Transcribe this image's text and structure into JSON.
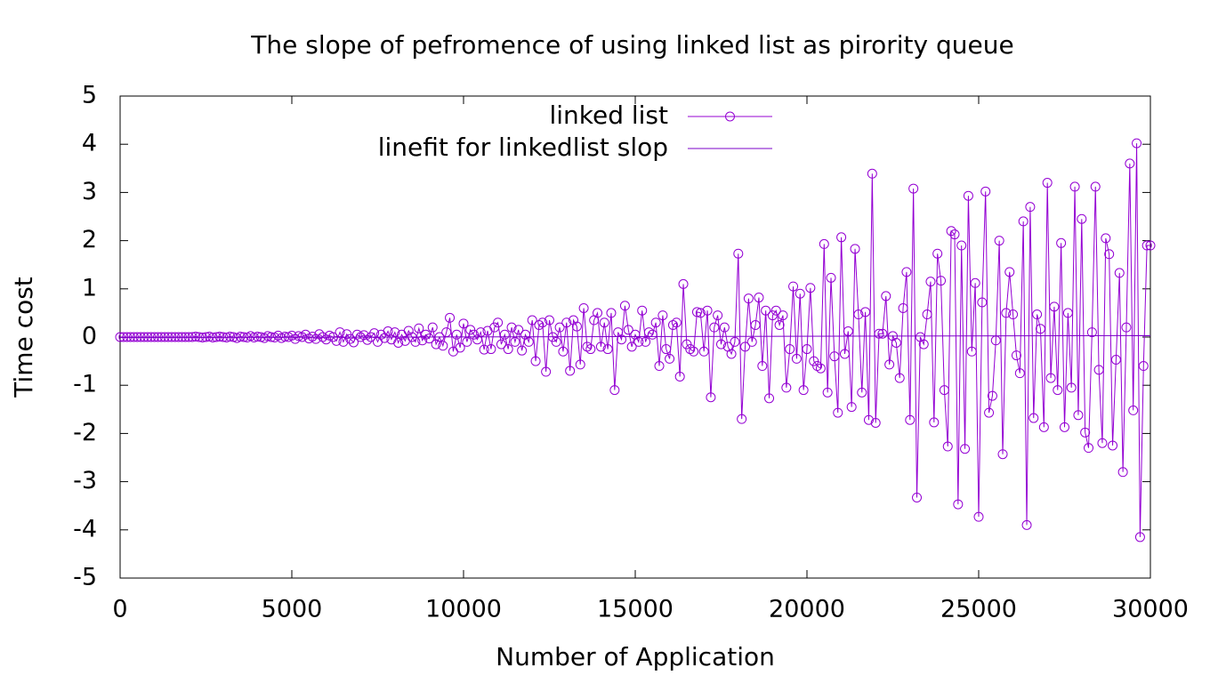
{
  "chart_data": {
    "type": "line",
    "title": "The slope of pefromence of using linked list as pirority queue",
    "xlabel": "Number of Application",
    "ylabel": "Time cost",
    "x": [
      0,
      100,
      200,
      300,
      400,
      500,
      600,
      700,
      800,
      900,
      1000,
      1100,
      1200,
      1300,
      1400,
      1500,
      1600,
      1700,
      1800,
      1900,
      2000,
      2100,
      2200,
      2300,
      2400,
      2500,
      2600,
      2700,
      2800,
      2900,
      3000,
      3100,
      3200,
      3300,
      3400,
      3500,
      3600,
      3700,
      3800,
      3900,
      4000,
      4100,
      4200,
      4300,
      4400,
      4500,
      4600,
      4700,
      4800,
      4900,
      5000,
      5100,
      5200,
      5300,
      5400,
      5500,
      5600,
      5700,
      5800,
      5900,
      6000,
      6100,
      6200,
      6300,
      6400,
      6500,
      6600,
      6700,
      6800,
      6900,
      7000,
      7100,
      7200,
      7300,
      7400,
      7500,
      7600,
      7700,
      7800,
      7900,
      8000,
      8100,
      8200,
      8300,
      8400,
      8500,
      8600,
      8700,
      8800,
      8900,
      9000,
      9100,
      9200,
      9300,
      9400,
      9500,
      9600,
      9700,
      9800,
      9900,
      10000,
      10100,
      10200,
      10300,
      10400,
      10500,
      10600,
      10700,
      10800,
      10900,
      11000,
      11100,
      11200,
      11300,
      11400,
      11500,
      11600,
      11700,
      11800,
      11900,
      12000,
      12100,
      12200,
      12300,
      12400,
      12500,
      12600,
      12700,
      12800,
      12900,
      13000,
      13100,
      13200,
      13300,
      13400,
      13500,
      13600,
      13700,
      13800,
      13900,
      14000,
      14100,
      14200,
      14300,
      14400,
      14500,
      14600,
      14700,
      14800,
      14900,
      15000,
      15100,
      15200,
      15300,
      15400,
      15500,
      15600,
      15700,
      15800,
      15900,
      16000,
      16100,
      16200,
      16300,
      16400,
      16500,
      16600,
      16700,
      16800,
      16900,
      17000,
      17100,
      17200,
      17300,
      17400,
      17500,
      17600,
      17700,
      17800,
      17900,
      18000,
      18100,
      18200,
      18300,
      18400,
      18500,
      18600,
      18700,
      18800,
      18900,
      19000,
      19100,
      19200,
      19300,
      19400,
      19500,
      19600,
      19700,
      19800,
      19900,
      20000,
      20100,
      20200,
      20300,
      20400,
      20500,
      20600,
      20700,
      20800,
      20900,
      21000,
      21100,
      21200,
      21300,
      21400,
      21500,
      21600,
      21700,
      21800,
      21900,
      22000,
      22100,
      22200,
      22300,
      22400,
      22500,
      22600,
      22700,
      22800,
      22900,
      23000,
      23100,
      23200,
      23300,
      23400,
      23500,
      23600,
      23700,
      23800,
      23900,
      24000,
      24100,
      24200,
      24300,
      24400,
      24500,
      24600,
      24700,
      24800,
      24900,
      25000,
      25100,
      25200,
      25300,
      25400,
      25500,
      25600,
      25700,
      25800,
      25900,
      26000,
      26100,
      26200,
      26300,
      26400,
      26500,
      26600,
      26700,
      26800,
      26900,
      27000,
      27100,
      27200,
      27300,
      27400,
      27500,
      27600,
      27700,
      27800,
      27900,
      28000,
      28100,
      28200,
      28300,
      28400,
      28500,
      28600,
      28700,
      28800,
      28900,
      29000,
      29100,
      29200,
      29300,
      29400,
      29500,
      29600,
      29700,
      29800,
      29900,
      30000
    ],
    "series": [
      {
        "name": "linked list",
        "color": "#9400d3",
        "marker": "circle",
        "values": [
          0,
          0,
          0,
          0,
          0,
          0,
          0,
          0,
          0,
          0,
          0,
          0,
          0,
          0,
          0,
          0,
          0,
          0,
          0,
          0,
          0,
          0,
          0.01,
          0,
          -0.01,
          0,
          0.01,
          -0.01,
          0,
          0.01,
          0,
          -0.01,
          0.01,
          0,
          -0.02,
          0.01,
          0,
          -0.01,
          0.02,
          -0.01,
          0.01,
          0,
          -0.02,
          0.02,
          0,
          -0.01,
          0.03,
          -0.02,
          0.01,
          0,
          0.03,
          -0.04,
          0.02,
          0,
          0.05,
          -0.03,
          0.01,
          -0.04,
          0.06,
          0,
          -0.05,
          0.03,
          0,
          -0.08,
          0.1,
          -0.1,
          0.06,
          -0.04,
          -0.11,
          0.05,
          0,
          0.04,
          -0.06,
          0,
          0.08,
          -0.1,
          0.05,
          -0.02,
          0.12,
          -0.05,
          0.1,
          -0.12,
          0.05,
          -0.08,
          0.13,
          0,
          -0.1,
          0.18,
          -0.07,
          0.05,
          -0.03,
          0.2,
          -0.15,
          0,
          -0.18,
          0.1,
          0.4,
          -0.3,
          0.05,
          -0.22,
          0.28,
          -0.1,
          0.15,
          0.05,
          -0.05,
          0.1,
          -0.26,
          0.13,
          -0.25,
          0.2,
          0.3,
          -0.15,
          0.05,
          -0.25,
          0.2,
          -0.1,
          0.15,
          -0.28,
          0.05,
          -0.1,
          0.35,
          -0.5,
          0.25,
          0.3,
          -0.72,
          0.35,
          0,
          -0.1,
          0.2,
          -0.3,
          0.3,
          -0.7,
          0.35,
          0.22,
          -0.57,
          0.6,
          -0.2,
          -0.25,
          0.35,
          0.5,
          -0.2,
          0.3,
          -0.25,
          0.5,
          -1.1,
          0.1,
          -0.05,
          0.65,
          0.15,
          -0.2,
          0.05,
          -0.1,
          0.55,
          -0.1,
          0.1,
          0.05,
          0.3,
          -0.6,
          0.45,
          -0.25,
          -0.45,
          0.25,
          0.3,
          -0.82,
          1.1,
          -0.15,
          -0.25,
          -0.3,
          0.52,
          0.5,
          -0.3,
          0.55,
          -1.25,
          0.2,
          0.45,
          -0.15,
          0.2,
          -0.2,
          -0.35,
          -0.1,
          1.73,
          -1.7,
          -0.2,
          0.8,
          -0.1,
          0.25,
          0.82,
          -0.6,
          0.55,
          -1.27,
          0.45,
          0.55,
          0.25,
          0.45,
          -1.05,
          -0.25,
          1.05,
          -0.45,
          0.9,
          -1.1,
          -0.25,
          1.02,
          -0.5,
          -0.6,
          -0.65,
          1.93,
          -1.15,
          1.23,
          -0.4,
          -1.57,
          2.07,
          -0.35,
          0.12,
          -1.45,
          1.83,
          0.47,
          -1.15,
          0.52,
          -1.72,
          3.39,
          -1.78,
          0.07,
          0.07,
          0.85,
          -0.57,
          0.02,
          -0.12,
          -0.85,
          0.6,
          1.35,
          -1.72,
          3.08,
          -3.33,
          0,
          -0.15,
          0.47,
          1.15,
          -1.77,
          1.73,
          1.17,
          -1.1,
          -2.27,
          2.2,
          2.13,
          -3.47,
          1.9,
          -2.32,
          2.93,
          -0.3,
          1.12,
          -3.73,
          0.72,
          3.02,
          -1.57,
          -1.22,
          -0.07,
          2.0,
          -2.43,
          0.5,
          1.35,
          0.47,
          -0.38,
          -0.75,
          2.4,
          -3.9,
          2.7,
          -1.68,
          0.47,
          0.17,
          -1.87,
          3.2,
          -0.85,
          0.63,
          -1.1,
          1.95,
          -1.87,
          0.5,
          -1.05,
          3.12,
          -1.62,
          2.45,
          -1.98,
          -2.3,
          0.1,
          3.12,
          -0.68,
          -2.2,
          2.05,
          1.72,
          -2.25,
          -0.47,
          1.33,
          -2.8,
          0.2,
          3.6,
          -1.52,
          4.02,
          -4.15,
          -0.6,
          1.9,
          1.9
        ]
      },
      {
        "name": "linefit for linkedlist slop",
        "color": "#7b00c8",
        "x": [
          0,
          30000
        ],
        "values": [
          -0.01,
          0.03
        ]
      }
    ],
    "xlim": [
      0,
      30000
    ],
    "xticks": [
      0,
      5000,
      10000,
      15000,
      20000,
      25000,
      30000
    ],
    "ylim": [
      -5,
      5
    ],
    "yticks": [
      -5,
      -4,
      -3,
      -2,
      -1,
      0,
      1,
      2,
      3,
      4,
      5
    ],
    "legend": "top-right",
    "grid": false
  }
}
